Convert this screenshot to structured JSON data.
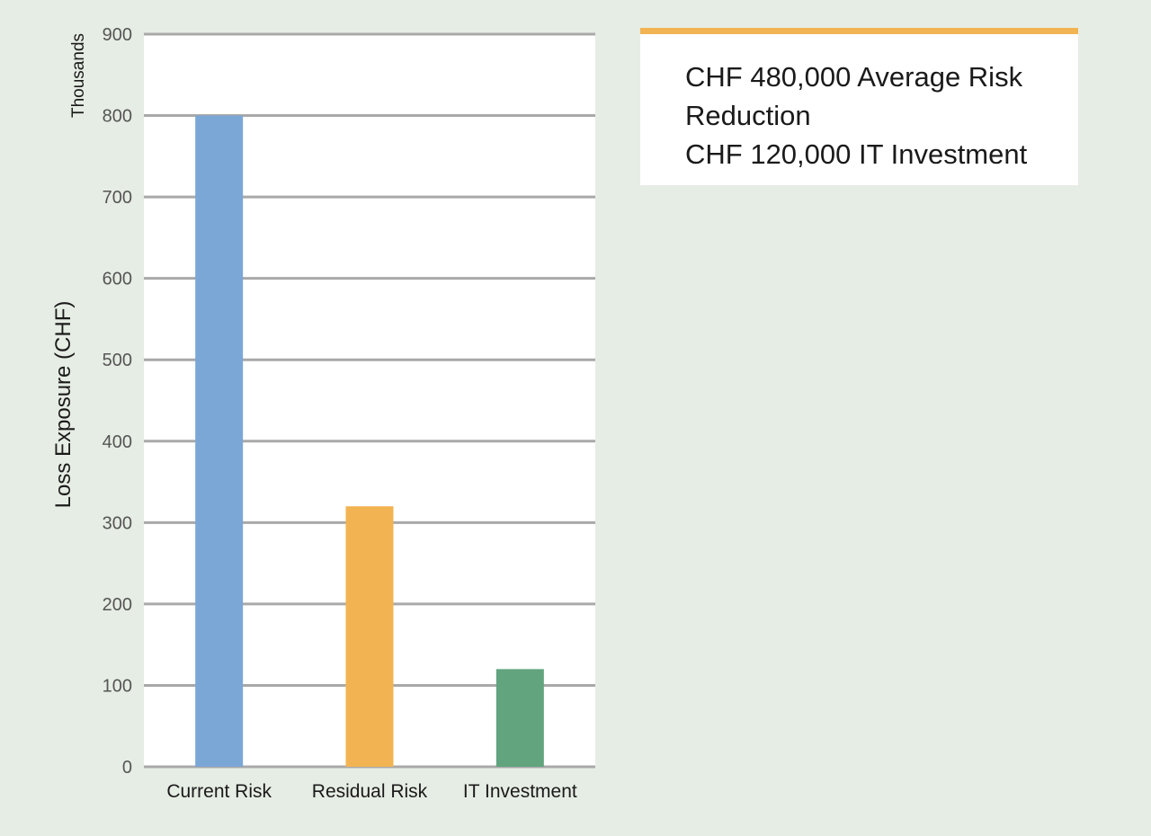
{
  "callout": {
    "line1": "CHF 480,000 Average Risk Reduction",
    "line2": "CHF 120,000 IT Investment",
    "accent_color": "#f2b452"
  },
  "chart_data": {
    "type": "bar",
    "categories": [
      "Current Risk",
      "Residual Risk",
      "IT Investment"
    ],
    "values": [
      800,
      320,
      120
    ],
    "colors": [
      "#7ba7d7",
      "#f2b452",
      "#62a47e"
    ],
    "ylabel": "Loss Exposure (CHF)",
    "yunit": "Thousands",
    "ylim": [
      0,
      900
    ],
    "yticks": [
      0,
      100,
      200,
      300,
      400,
      500,
      600,
      700,
      800,
      900
    ],
    "grid": true
  }
}
